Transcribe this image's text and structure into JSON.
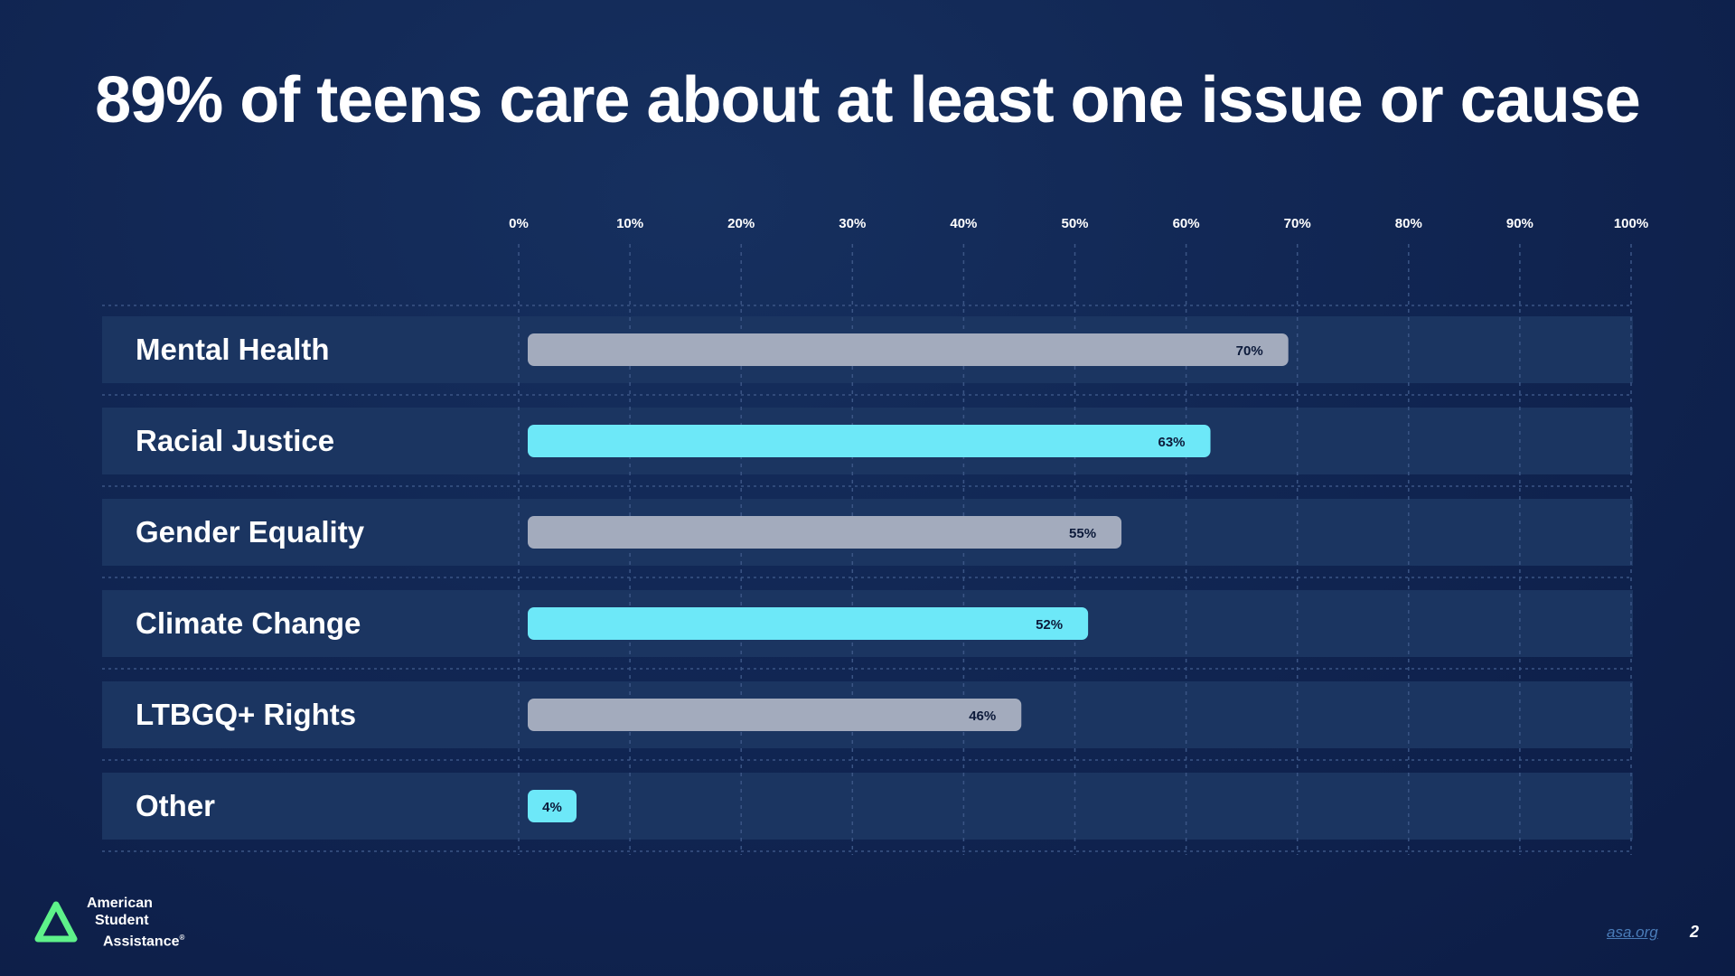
{
  "chart_data": {
    "type": "bar",
    "orientation": "horizontal",
    "title": "89% of teens care about at least one issue or cause",
    "categories": [
      "Mental Health",
      "Racial Justice",
      "Gender Equality",
      "Climate Change",
      "LTBGQ+ Rights",
      "Other"
    ],
    "values": [
      70,
      63,
      55,
      52,
      46,
      4
    ],
    "value_labels": [
      "70%",
      "63%",
      "55%",
      "52%",
      "46%",
      "4%"
    ],
    "bar_colors": [
      "#a3abbd",
      "#6de8f8",
      "#a3abbd",
      "#6de8f8",
      "#a3abbd",
      "#6de8f8"
    ],
    "xlim": [
      0,
      100
    ],
    "ticks": [
      0,
      10,
      20,
      30,
      40,
      50,
      60,
      70,
      80,
      90,
      100
    ],
    "tick_labels": [
      "0%",
      "10%",
      "20%",
      "30%",
      "40%",
      "50%",
      "60%",
      "70%",
      "80%",
      "90%",
      "100%"
    ],
    "tick_position": "top",
    "grid": true,
    "xlabel": "",
    "ylabel": ""
  },
  "colors": {
    "background": "#112653",
    "row_band": "#1b3561",
    "bar_gray": "#a3abbd",
    "bar_cyan": "#6de8f8",
    "logo_green": "#5ef28a"
  },
  "logo": {
    "line1": "American",
    "line2": "Student",
    "line3": "Assistance",
    "mark": "®",
    "icon": "triangle-logo-icon"
  },
  "footer": {
    "link": "asa.org",
    "page_number": "2"
  }
}
